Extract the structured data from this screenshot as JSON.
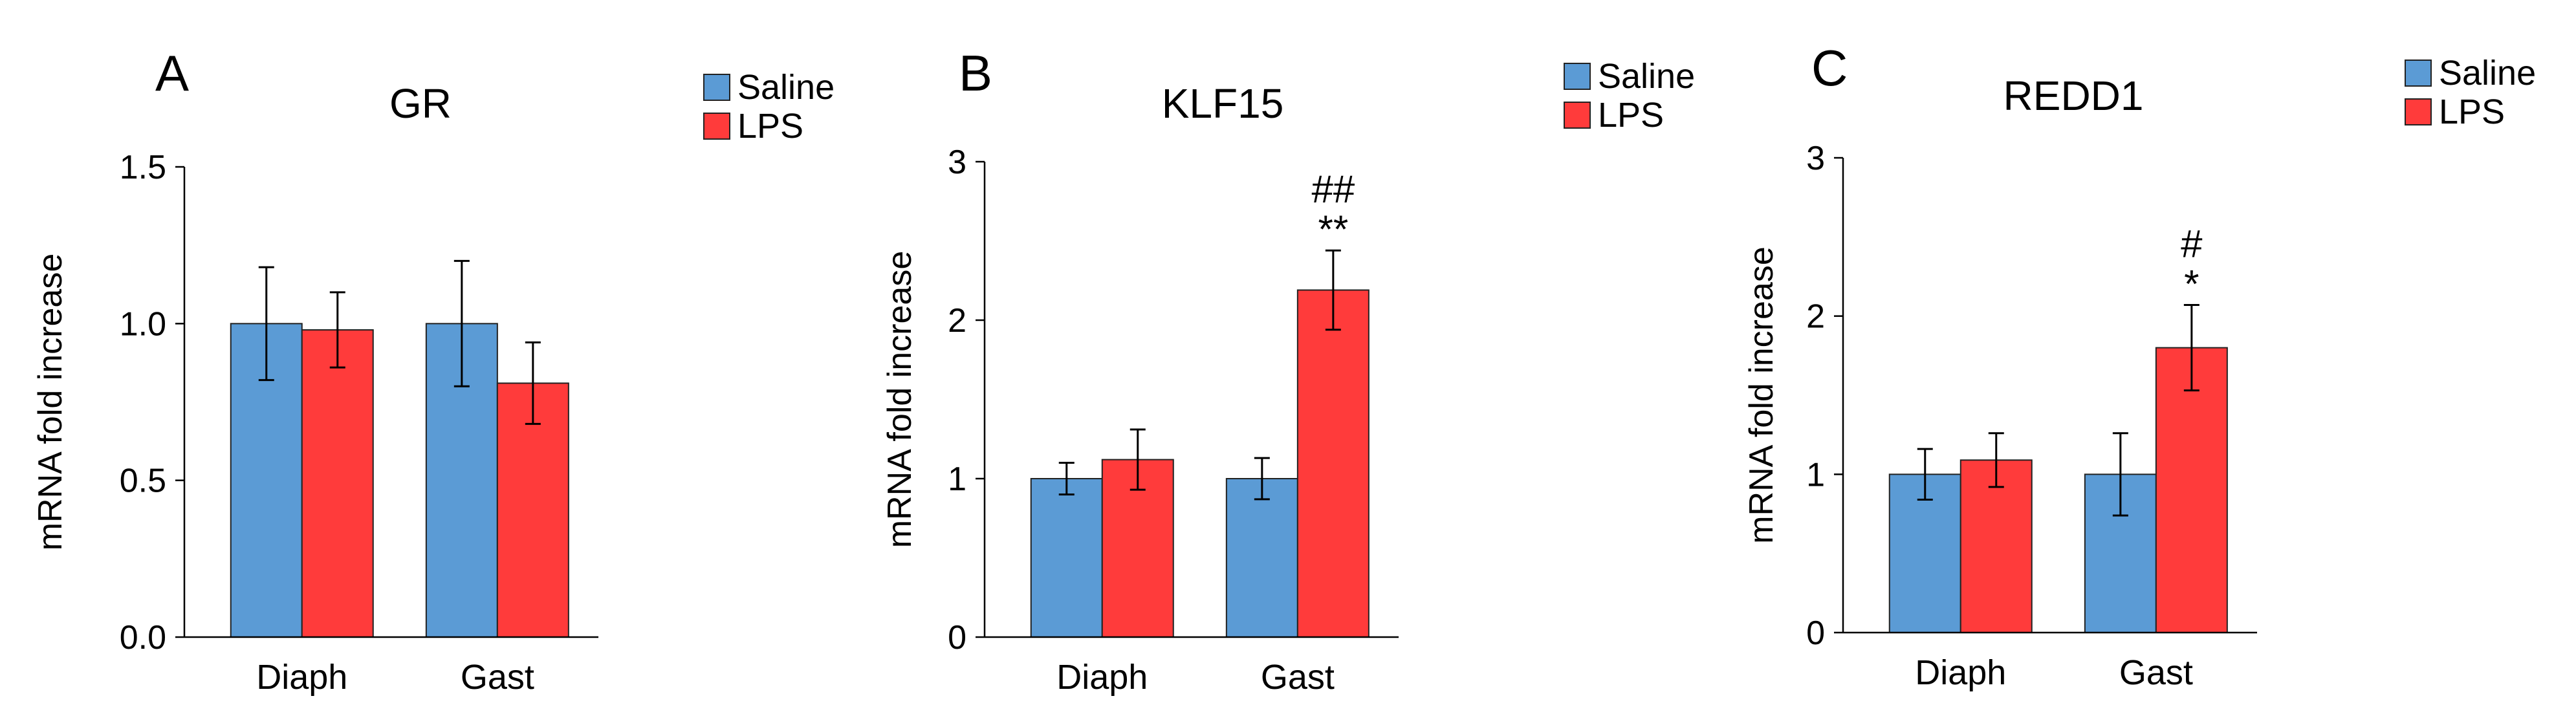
{
  "chart_data": [
    {
      "type": "bar",
      "panel_label": "A",
      "title": "GR",
      "ylabel": "mRNA fold increase",
      "xlabel": "",
      "categories": [
        "Diaph",
        "Gast"
      ],
      "ylim": [
        0,
        1.5
      ],
      "yticks": [
        "0.0",
        "0.5",
        "1.0",
        "1.5"
      ],
      "grid": false,
      "legend_position": "top-right",
      "series": [
        {
          "name": "Saline",
          "color": "#5b9bd5",
          "values": [
            1.0,
            1.0
          ],
          "errors": [
            0.18,
            0.2
          ]
        },
        {
          "name": "LPS",
          "color": "#ff3b3b",
          "values": [
            0.98,
            0.81
          ],
          "errors": [
            0.12,
            0.13
          ]
        }
      ],
      "annotations": [
        {
          "category": "Gast",
          "series": "LPS",
          "lines": []
        }
      ]
    },
    {
      "type": "bar",
      "panel_label": "B",
      "title": "KLF15",
      "ylabel": "mRNA fold increase",
      "xlabel": "",
      "categories": [
        "Diaph",
        "Gast"
      ],
      "ylim": [
        0,
        3
      ],
      "yticks": [
        "0",
        "1",
        "2",
        "3"
      ],
      "grid": false,
      "legend_position": "top-right",
      "series": [
        {
          "name": "Saline",
          "color": "#5b9bd5",
          "values": [
            1.0,
            1.0
          ],
          "errors": [
            0.1,
            0.13
          ]
        },
        {
          "name": "LPS",
          "color": "#ff3b3b",
          "values": [
            1.12,
            2.19
          ],
          "errors": [
            0.19,
            0.25
          ]
        }
      ],
      "annotations": [
        {
          "category": "Gast",
          "series": "LPS",
          "lines": [
            "##",
            "**"
          ]
        }
      ]
    },
    {
      "type": "bar",
      "panel_label": "C",
      "title": "REDD1",
      "ylabel": "mRNA fold increase",
      "xlabel": "",
      "categories": [
        "Diaph",
        "Gast"
      ],
      "ylim": [
        0,
        3
      ],
      "yticks": [
        "0",
        "1",
        "2",
        "3"
      ],
      "grid": false,
      "legend_position": "top-right",
      "series": [
        {
          "name": "Saline",
          "color": "#5b9bd5",
          "values": [
            1.0,
            1.0
          ],
          "errors": [
            0.16,
            0.26
          ]
        },
        {
          "name": "LPS",
          "color": "#ff3b3b",
          "values": [
            1.09,
            1.8
          ],
          "errors": [
            0.17,
            0.27
          ]
        }
      ],
      "annotations": [
        {
          "category": "Gast",
          "series": "LPS",
          "lines": [
            "#",
            "*"
          ]
        }
      ]
    }
  ]
}
